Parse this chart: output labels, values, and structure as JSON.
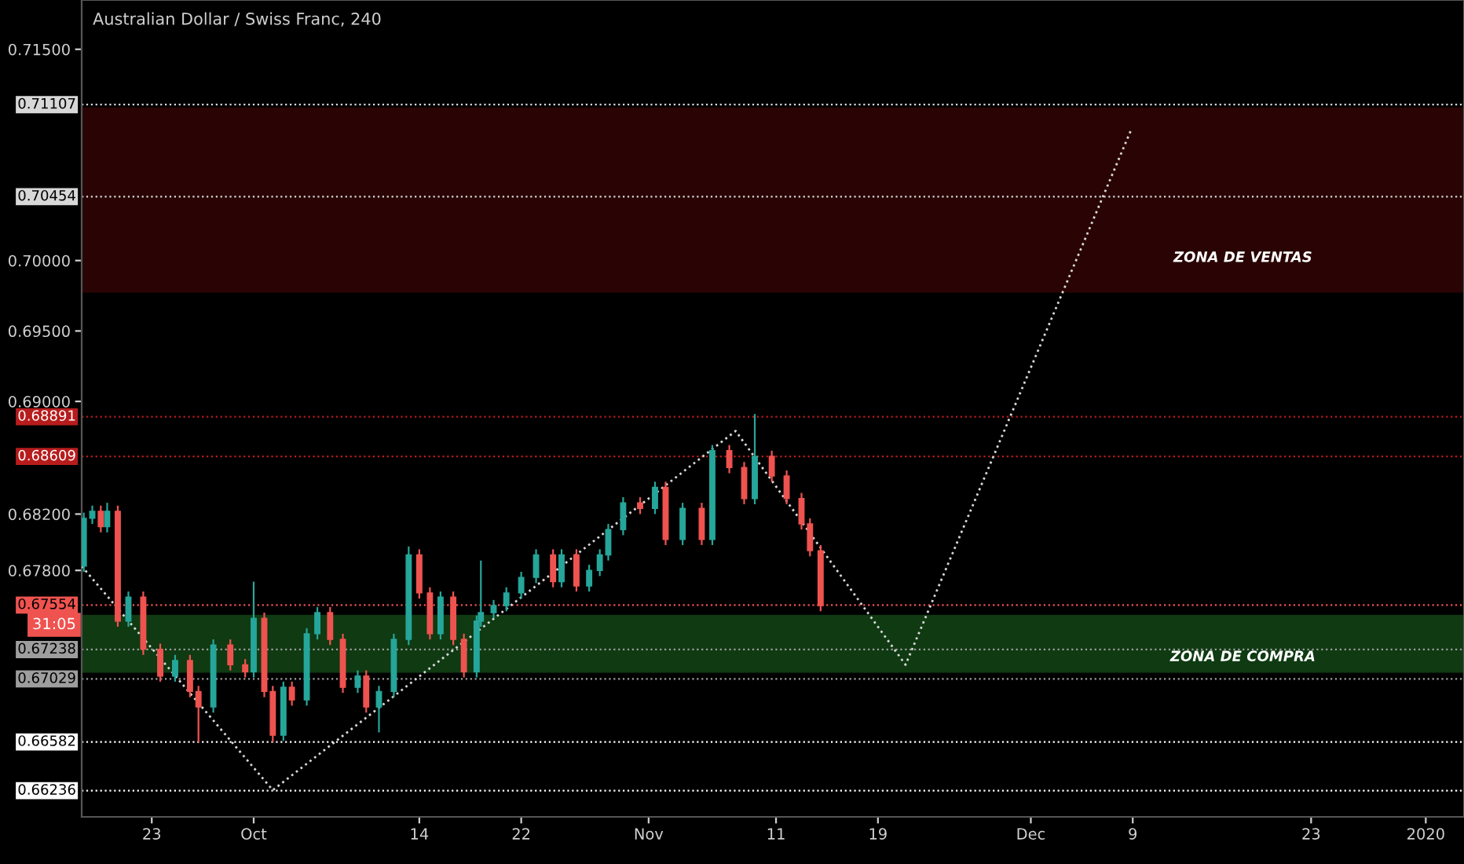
{
  "chart_data": {
    "type": "candlestick",
    "title": "Australian Dollar / Swiss Franc, 240",
    "x": [
      "2019-09-17T16:00",
      "2019-09-18T08:00",
      "2019-09-19T00:00",
      "2019-09-19T12:00",
      "2019-09-20T08:00",
      "2019-09-21T04:00",
      "2019-09-22T08:00",
      "2019-09-23T16:00",
      "2019-09-24T20:00",
      "2019-09-26T00:00",
      "2019-09-26T16:00",
      "2019-09-27T20:00",
      "2019-09-29T04:00",
      "2019-09-30T08:00",
      "2019-10-01T00:00",
      "2019-10-01T20:00",
      "2019-10-02T12:00",
      "2019-10-03T08:00",
      "2019-10-04T00:00",
      "2019-10-05T04:00",
      "2019-10-06T00:00",
      "2019-10-07T00:00",
      "2019-10-08T00:00",
      "2019-10-09T04:00",
      "2019-10-09T20:00",
      "2019-10-10T20:00",
      "2019-10-12T00:00",
      "2019-10-13T04:00",
      "2019-10-14T00:00",
      "2019-10-14T20:00",
      "2019-10-15T16:00",
      "2019-10-16T16:00",
      "2019-10-17T12:00",
      "2019-10-18T12:00",
      "2019-10-18T20:00",
      "2019-10-19T20:00",
      "2019-10-20T20:00",
      "2019-10-22T00:00",
      "2019-10-23T04:00",
      "2019-10-24T12:00",
      "2019-10-25T04:00",
      "2019-10-26T08:00",
      "2019-10-27T08:00",
      "2019-10-28T04:00",
      "2019-10-28T20:00",
      "2019-10-30T00:00",
      "2019-10-31T08:00",
      "2019-11-01T12:00",
      "2019-11-02T08:00",
      "2019-11-03T16:00",
      "2019-11-05T04:00",
      "2019-11-06T00:00",
      "2019-11-07T08:00",
      "2019-11-08T12:00",
      "2019-11-09T08:00",
      "2019-11-10T16:00",
      "2019-11-11T20:00",
      "2019-11-13T00:00",
      "2019-11-13T16:00",
      "2019-11-14T12:00"
    ],
    "ohlc": [
      [
        0.6783,
        0.6821,
        0.6779,
        0.6817
      ],
      [
        0.6817,
        0.6826,
        0.6813,
        0.6822
      ],
      [
        0.6822,
        0.6826,
        0.6807,
        0.6811
      ],
      [
        0.6811,
        0.6828,
        0.6807,
        0.6822
      ],
      [
        0.6822,
        0.6826,
        0.674,
        0.6744
      ],
      [
        0.6744,
        0.6765,
        0.674,
        0.6761
      ],
      [
        0.6761,
        0.6765,
        0.672,
        0.6724
      ],
      [
        0.6724,
        0.6728,
        0.6701,
        0.6705
      ],
      [
        0.6705,
        0.672,
        0.6701,
        0.6716
      ],
      [
        0.6716,
        0.672,
        0.669,
        0.6694
      ],
      [
        0.6694,
        0.6698,
        0.6658,
        0.6683
      ],
      [
        0.6683,
        0.6731,
        0.6679,
        0.6727
      ],
      [
        0.6727,
        0.6731,
        0.6709,
        0.6713
      ],
      [
        0.6713,
        0.6717,
        0.6704,
        0.6708
      ],
      [
        0.6708,
        0.6772,
        0.6704,
        0.6746
      ],
      [
        0.6746,
        0.675,
        0.669,
        0.6694
      ],
      [
        0.6694,
        0.6698,
        0.6658,
        0.6663
      ],
      [
        0.6663,
        0.6701,
        0.6659,
        0.6697
      ],
      [
        0.6697,
        0.6701,
        0.6684,
        0.6688
      ],
      [
        0.6688,
        0.6739,
        0.6684,
        0.6735
      ],
      [
        0.6735,
        0.6754,
        0.6731,
        0.675
      ],
      [
        0.675,
        0.6754,
        0.6727,
        0.6731
      ],
      [
        0.6731,
        0.6735,
        0.6693,
        0.6697
      ],
      [
        0.6697,
        0.6709,
        0.6693,
        0.6705
      ],
      [
        0.6705,
        0.6709,
        0.6679,
        0.6683
      ],
      [
        0.6683,
        0.6698,
        0.6665,
        0.6694
      ],
      [
        0.6694,
        0.6735,
        0.669,
        0.6731
      ],
      [
        0.6731,
        0.6797,
        0.6727,
        0.6791
      ],
      [
        0.6791,
        0.6795,
        0.676,
        0.6764
      ],
      [
        0.6764,
        0.6768,
        0.6731,
        0.6735
      ],
      [
        0.6735,
        0.6765,
        0.6731,
        0.6761
      ],
      [
        0.6761,
        0.6765,
        0.6727,
        0.6731
      ],
      [
        0.6731,
        0.6735,
        0.6704,
        0.6708
      ],
      [
        0.6708,
        0.6748,
        0.6704,
        0.6744
      ],
      [
        0.6744,
        0.6787,
        0.674,
        0.675
      ],
      [
        0.675,
        0.6759,
        0.6746,
        0.6755
      ],
      [
        0.6755,
        0.6768,
        0.6751,
        0.6764
      ],
      [
        0.6764,
        0.6779,
        0.676,
        0.6775
      ],
      [
        0.6775,
        0.6795,
        0.6771,
        0.6791
      ],
      [
        0.6791,
        0.6795,
        0.6768,
        0.6772
      ],
      [
        0.6772,
        0.6795,
        0.6768,
        0.6791
      ],
      [
        0.6791,
        0.6795,
        0.6765,
        0.6769
      ],
      [
        0.6769,
        0.6784,
        0.6765,
        0.678
      ],
      [
        0.678,
        0.6795,
        0.6776,
        0.6791
      ],
      [
        0.6791,
        0.6813,
        0.6787,
        0.6809
      ],
      [
        0.6809,
        0.6832,
        0.6805,
        0.6828
      ],
      [
        0.6828,
        0.6832,
        0.682,
        0.6824
      ],
      [
        0.6824,
        0.6843,
        0.682,
        0.6839
      ],
      [
        0.6839,
        0.6843,
        0.6798,
        0.6802
      ],
      [
        0.6802,
        0.6828,
        0.6798,
        0.6824
      ],
      [
        0.6824,
        0.6828,
        0.6798,
        0.6802
      ],
      [
        0.6802,
        0.6869,
        0.6798,
        0.6865
      ],
      [
        0.6865,
        0.6869,
        0.6849,
        0.6853
      ],
      [
        0.6853,
        0.6857,
        0.6827,
        0.6831
      ],
      [
        0.6831,
        0.6891,
        0.6827,
        0.6861
      ],
      [
        0.6861,
        0.6865,
        0.6843,
        0.6847
      ],
      [
        0.6847,
        0.6851,
        0.6827,
        0.6831
      ],
      [
        0.6831,
        0.6835,
        0.6809,
        0.6813
      ],
      [
        0.6813,
        0.6817,
        0.679,
        0.6794
      ],
      [
        0.6794,
        0.6798,
        0.6751,
        0.6755
      ]
    ],
    "colors": [
      "#26a69a",
      "#26a69a",
      "#ef5350",
      "#26a69a",
      "#ef5350",
      "#26a69a",
      "#ef5350",
      "#ef5350",
      "#26a69a",
      "#ef5350",
      "#ef5350",
      "#26a69a",
      "#ef5350",
      "#ef5350",
      "#26a69a",
      "#ef5350",
      "#ef5350",
      "#26a69a",
      "#ef5350",
      "#26a69a",
      "#26a69a",
      "#ef5350",
      "#ef5350",
      "#26a69a",
      "#ef5350",
      "#26a69a",
      "#26a69a",
      "#26a69a",
      "#ef5350",
      "#ef5350",
      "#26a69a",
      "#ef5350",
      "#ef5350",
      "#26a69a",
      "#26a69a",
      "#26a69a",
      "#26a69a",
      "#26a69a",
      "#26a69a",
      "#ef5350",
      "#26a69a",
      "#ef5350",
      "#26a69a",
      "#26a69a",
      "#26a69a",
      "#26a69a",
      "#ef5350",
      "#26a69a",
      "#ef5350",
      "#26a69a",
      "#ef5350",
      "#26a69a",
      "#ef5350",
      "#ef5350",
      "#26a69a",
      "#ef5350",
      "#ef5350",
      "#ef5350",
      "#ef5350",
      "#ef5350"
    ],
    "series": [
      {
        "type": "line",
        "color": "#d8d8d8",
        "line_style": "dotted",
        "x": [
          "2019-09-17T12:00",
          "2019-10-02T12:00",
          "2019-11-07T20:00",
          "2019-11-21T04:00",
          "2019-12-08T20:00"
        ],
        "values": [
          0.6783,
          0.6624,
          0.6879,
          0.6713,
          0.7092
        ]
      }
    ],
    "xlim": [
      "2019-09-17T12:00",
      "2020-01-04T00:00"
    ],
    "xticks": [
      {
        "value": "2019-09-23",
        "label": "23"
      },
      {
        "value": "2019-10-01",
        "label": "Oct"
      },
      {
        "value": "2019-10-14",
        "label": "14"
      },
      {
        "value": "2019-10-22",
        "label": "22"
      },
      {
        "value": "2019-11-01",
        "label": "Nov"
      },
      {
        "value": "2019-11-11",
        "label": "11"
      },
      {
        "value": "2019-11-19",
        "label": "19"
      },
      {
        "value": "2019-12-01",
        "label": "Dec"
      },
      {
        "value": "2019-12-09",
        "label": "9"
      },
      {
        "value": "2019-12-23",
        "label": "23"
      },
      {
        "value": "2020-01-01",
        "label": "2020"
      }
    ],
    "ylim": [
      0.6605,
      0.7185
    ],
    "yticks": [
      {
        "value": 0.715,
        "label": "0.71500"
      },
      {
        "value": 0.7,
        "label": "0.70000"
      },
      {
        "value": 0.695,
        "label": "0.69500"
      },
      {
        "value": 0.69,
        "label": "0.69000"
      },
      {
        "value": 0.682,
        "label": "0.68200"
      },
      {
        "value": 0.678,
        "label": "0.67800"
      }
    ],
    "ref_lines": [
      {
        "axis": "y",
        "value": 0.71107,
        "label": "0.71107",
        "color": "#d8d8d8",
        "line_style": "dotted"
      },
      {
        "axis": "y",
        "value": 0.70454,
        "label": "0.70454",
        "color": "#d8d8d8",
        "line_style": "dotted"
      },
      {
        "axis": "y",
        "value": 0.68891,
        "label": "0.68891",
        "color": "#b71c1c",
        "line_style": "dotted"
      },
      {
        "axis": "y",
        "value": 0.68609,
        "label": "0.68609",
        "color": "#b71c1c",
        "line_style": "dotted"
      },
      {
        "axis": "y",
        "value": 0.67554,
        "label": "0.67554",
        "color": "#ef5350",
        "line_style": "dotted"
      },
      {
        "axis": "y",
        "value": 0.67238,
        "label": "0.67238",
        "color": "#9e9e9e",
        "line_style": "dotted"
      },
      {
        "axis": "y",
        "value": 0.67029,
        "label": "0.67029",
        "color": "#9e9e9e",
        "line_style": "dotted"
      },
      {
        "axis": "y",
        "value": 0.66582,
        "label": "0.66582",
        "color": "#ffffff",
        "line_style": "dotted"
      },
      {
        "axis": "y",
        "value": 0.66236,
        "label": "0.66236",
        "color": "#ffffff",
        "line_style": "dotted"
      }
    ],
    "bands": [
      {
        "axis": "y",
        "from": 0.69772,
        "to": 0.71087,
        "label": "ZONA DE VENTAS",
        "color": "#2a0404"
      },
      {
        "axis": "y",
        "from": 0.67073,
        "to": 0.67485,
        "label": "ZONA DE COMPRA",
        "color": "#0f3a12"
      }
    ],
    "annotations": [
      "31:05"
    ],
    "grid": false,
    "legend": false
  }
}
